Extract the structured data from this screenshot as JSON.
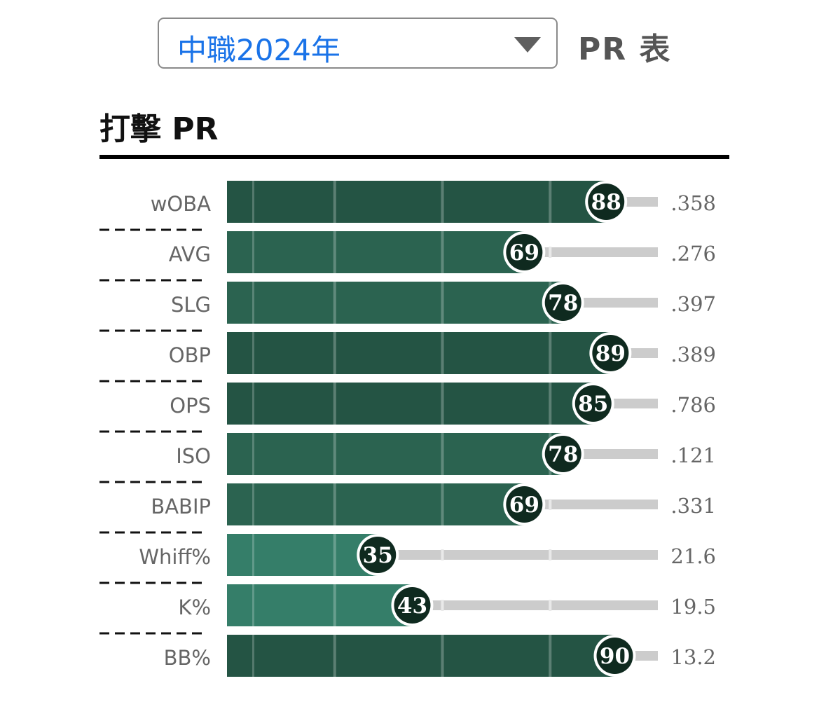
{
  "selector": {
    "value": "中職2024年"
  },
  "page_title": "PR 表",
  "section_title": "打擊 PR",
  "colors": {
    "bar_high": "#245444",
    "bar_mid": "#2b6350",
    "bar_low": "#357e69",
    "badge": "#0f2a1f",
    "track": "#cccccc",
    "label": "#666666"
  },
  "chart_data": {
    "type": "bar",
    "orientation": "horizontal",
    "categories": [
      "wOBA",
      "AVG",
      "SLG",
      "OBP",
      "OPS",
      "ISO",
      "BABIP",
      "Whiff%",
      "K%",
      "BB%"
    ],
    "values": [
      88,
      69,
      78,
      89,
      85,
      78,
      69,
      35,
      43,
      90
    ],
    "stat_values": [
      ".358",
      ".276",
      ".397",
      ".389",
      ".786",
      ".121",
      ".331",
      "21.6",
      "19.5",
      "13.2"
    ],
    "xlim": [
      0,
      100
    ],
    "reference_lines": [
      25,
      50,
      75
    ],
    "title": "打擊 PR"
  }
}
